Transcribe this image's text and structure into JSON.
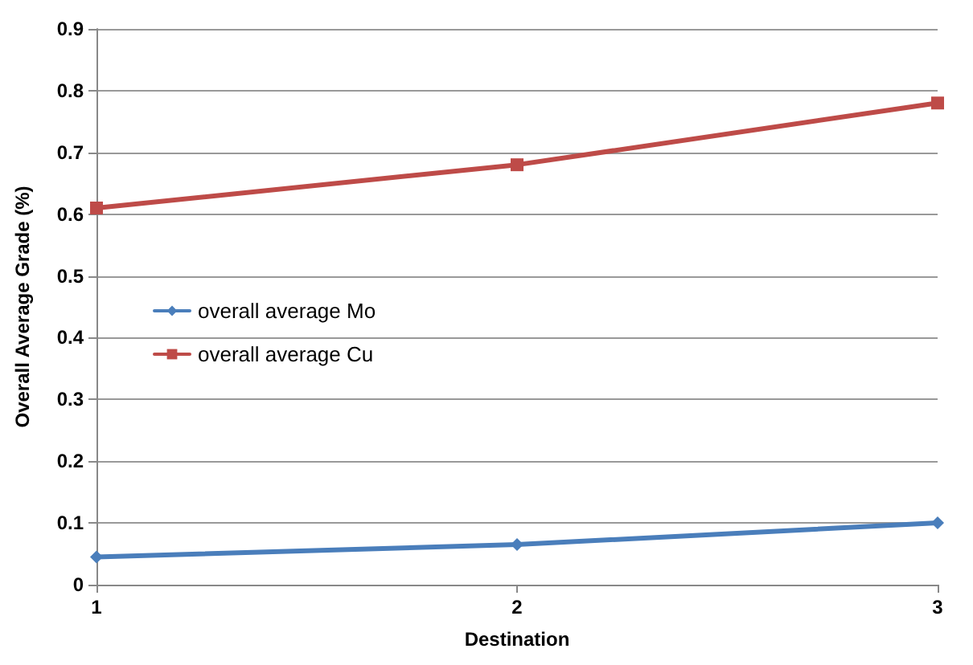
{
  "chart_data": {
    "type": "line",
    "xlabel": "Destination",
    "ylabel": "Overall Average Grade (%)",
    "categories": [
      "1",
      "2",
      "3"
    ],
    "series": [
      {
        "name": "overall average Mo",
        "color": "#4a7ebb",
        "marker": "diamond",
        "values": [
          0.045,
          0.065,
          0.1
        ]
      },
      {
        "name": "overall average Cu",
        "color": "#be4b48",
        "marker": "square",
        "values": [
          0.61,
          0.68,
          0.78
        ]
      }
    ],
    "ylim": [
      0,
      0.9
    ],
    "yticks": [
      0,
      0.1,
      0.2,
      0.3,
      0.4,
      0.5,
      0.6,
      0.7,
      0.8,
      0.9
    ],
    "grid": "y",
    "legend": "left"
  }
}
